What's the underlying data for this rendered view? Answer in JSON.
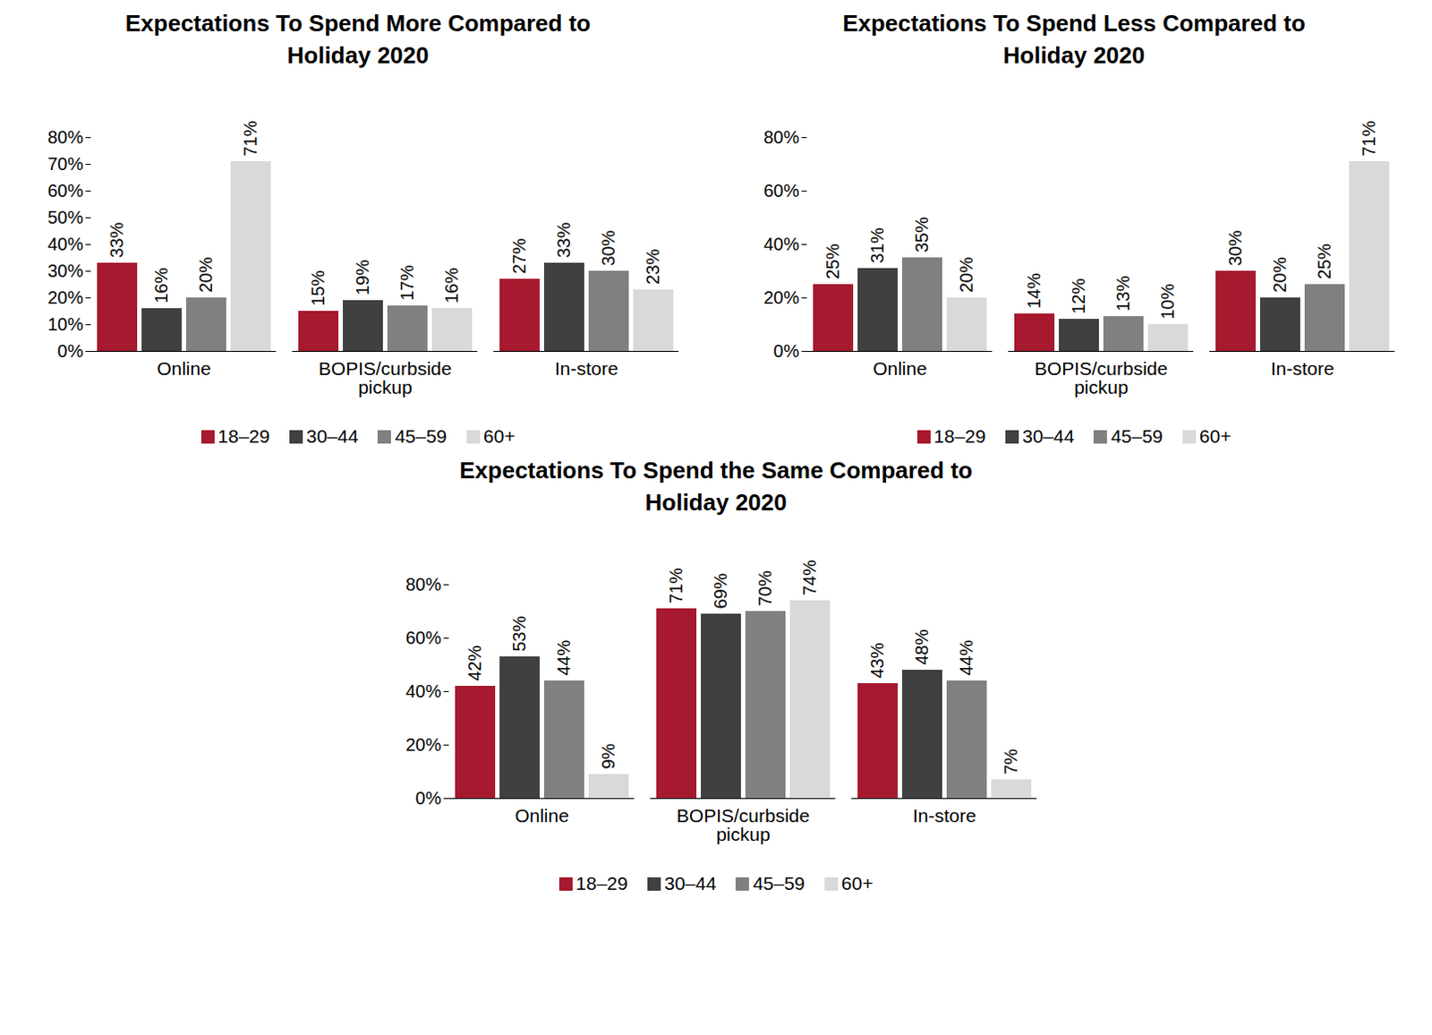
{
  "chart_data": [
    {
      "type": "bar",
      "title": "Expectations To Spend More Compared to Holiday 2020",
      "categories": [
        "Online",
        "BOPIS/curbside pickup",
        "In-store"
      ],
      "series": [
        {
          "name": "18–29",
          "color": "#a6192e",
          "values": [
            33,
            15,
            27
          ],
          "value_labels": [
            "33%",
            "15%",
            "27%"
          ]
        },
        {
          "name": "30–44",
          "color": "#404040",
          "values": [
            16,
            19,
            33
          ],
          "value_labels": [
            "16%",
            "19%",
            "33%"
          ]
        },
        {
          "name": "45–59",
          "color": "#808080",
          "values": [
            20,
            17,
            30
          ],
          "value_labels": [
            "20%",
            "17%",
            "30%"
          ]
        },
        {
          "name": "60+",
          "color": "#d9d9d9",
          "values": [
            71,
            16,
            23
          ],
          "value_labels": [
            "71%",
            "16%",
            "23%"
          ]
        }
      ],
      "ylim": [
        0,
        80
      ],
      "yticks": [
        {
          "value": 0,
          "label": "0%"
        },
        {
          "value": 10,
          "label": "10%"
        },
        {
          "value": 20,
          "label": "20%"
        },
        {
          "value": 30,
          "label": "30%"
        },
        {
          "value": 40,
          "label": "40%"
        },
        {
          "value": 50,
          "label": "50%"
        },
        {
          "value": 60,
          "label": "60%"
        },
        {
          "value": 70,
          "label": "70%"
        },
        {
          "value": 80,
          "label": "80%"
        }
      ],
      "data_labels": true,
      "legend": "bottom"
    },
    {
      "type": "bar",
      "title": "Expectations To Spend Less Compared to Holiday 2020",
      "categories": [
        "Online",
        "BOPIS/curbside pickup",
        "In-store"
      ],
      "series": [
        {
          "name": "18–29",
          "color": "#a6192e",
          "values": [
            25,
            14,
            30
          ],
          "value_labels": [
            "25%",
            "14%",
            "30%"
          ]
        },
        {
          "name": "30–44",
          "color": "#404040",
          "values": [
            31,
            12,
            20
          ],
          "value_labels": [
            "31%",
            "12%",
            "20%"
          ]
        },
        {
          "name": "45–59",
          "color": "#808080",
          "values": [
            35,
            13,
            25
          ],
          "value_labels": [
            "35%",
            "13%",
            "25%"
          ]
        },
        {
          "name": "60+",
          "color": "#d9d9d9",
          "values": [
            20,
            10,
            71
          ],
          "value_labels": [
            "20%",
            "10%",
            "71%"
          ]
        }
      ],
      "ylim": [
        0,
        80
      ],
      "yticks": [
        {
          "value": 0,
          "label": "0%"
        },
        {
          "value": 20,
          "label": "20%"
        },
        {
          "value": 40,
          "label": "40%"
        },
        {
          "value": 60,
          "label": "60%"
        },
        {
          "value": 80,
          "label": "80%"
        }
      ],
      "data_labels": true,
      "legend": "bottom"
    },
    {
      "type": "bar",
      "title": "Expectations To Spend the Same Compared to Holiday 2020",
      "categories": [
        "Online",
        "BOPIS/curbside pickup",
        "In-store"
      ],
      "series": [
        {
          "name": "18–29",
          "color": "#a6192e",
          "values": [
            42,
            71,
            43
          ],
          "value_labels": [
            "42%",
            "71%",
            "43%"
          ]
        },
        {
          "name": "30–44",
          "color": "#404040",
          "values": [
            53,
            69,
            48
          ],
          "value_labels": [
            "53%",
            "69%",
            "48%"
          ]
        },
        {
          "name": "45–59",
          "color": "#808080",
          "values": [
            44,
            70,
            44
          ],
          "value_labels": [
            "44%",
            "70%",
            "44%"
          ]
        },
        {
          "name": "60+",
          "color": "#d9d9d9",
          "values": [
            9,
            74,
            7
          ],
          "value_labels": [
            "9%",
            "74%",
            "7%"
          ]
        }
      ],
      "ylim": [
        0,
        80
      ],
      "yticks": [
        {
          "value": 0,
          "label": "0%"
        },
        {
          "value": 20,
          "label": "20%"
        },
        {
          "value": 40,
          "label": "40%"
        },
        {
          "value": 60,
          "label": "60%"
        },
        {
          "value": 80,
          "label": "80%"
        }
      ],
      "data_labels": true,
      "legend": "bottom"
    }
  ]
}
